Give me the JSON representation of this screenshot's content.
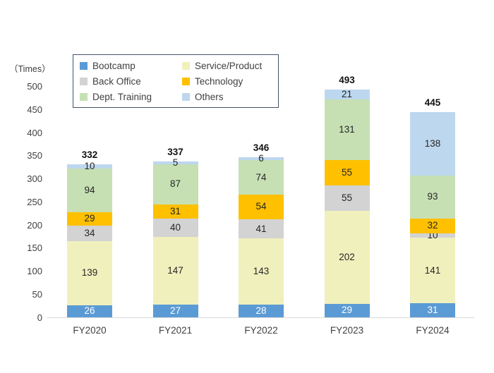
{
  "chart_data": {
    "type": "bar",
    "stacked": true,
    "title": "",
    "unit_label": "（Times）",
    "xlabel": "",
    "ylabel": "Times",
    "ylim": [
      0,
      500
    ],
    "ytick_step": 50,
    "yticks": [
      0,
      50,
      100,
      150,
      200,
      250,
      300,
      350,
      400,
      450,
      500
    ],
    "grid": false,
    "legend_position": "top-left-inside-box",
    "categories": [
      "FY2020",
      "FY2021",
      "FY2022",
      "FY2023",
      "FY2024"
    ],
    "series": [
      {
        "name": "Bootcamp",
        "color": "#5B9BD5",
        "label_color": "#FFFFFF",
        "values": [
          26,
          27,
          28,
          29,
          31
        ]
      },
      {
        "name": "Service/Product",
        "color": "#F0F0BD",
        "label_color": "#262626",
        "values": [
          139,
          147,
          143,
          202,
          141
        ]
      },
      {
        "name": "Back Office",
        "color": "#D3D3D3",
        "label_color": "#262626",
        "values": [
          34,
          40,
          41,
          55,
          10
        ]
      },
      {
        "name": "Technology",
        "color": "#FFC000",
        "label_color": "#262626",
        "values": [
          29,
          31,
          54,
          55,
          32
        ]
      },
      {
        "name": "Dept. Training",
        "color": "#C6E0B4",
        "label_color": "#262626",
        "values": [
          94,
          87,
          74,
          131,
          93
        ]
      },
      {
        "name": "Others",
        "color": "#BDD7EE",
        "label_color": "#262626",
        "values": [
          10,
          5,
          6,
          21,
          138
        ]
      }
    ],
    "totals": [
      332,
      337,
      346,
      493,
      445
    ],
    "colors": {
      "axis_line": "#D9D9D9",
      "legend_border": "#44546A",
      "tick_text": "#404040",
      "total_text": "#111111"
    }
  }
}
